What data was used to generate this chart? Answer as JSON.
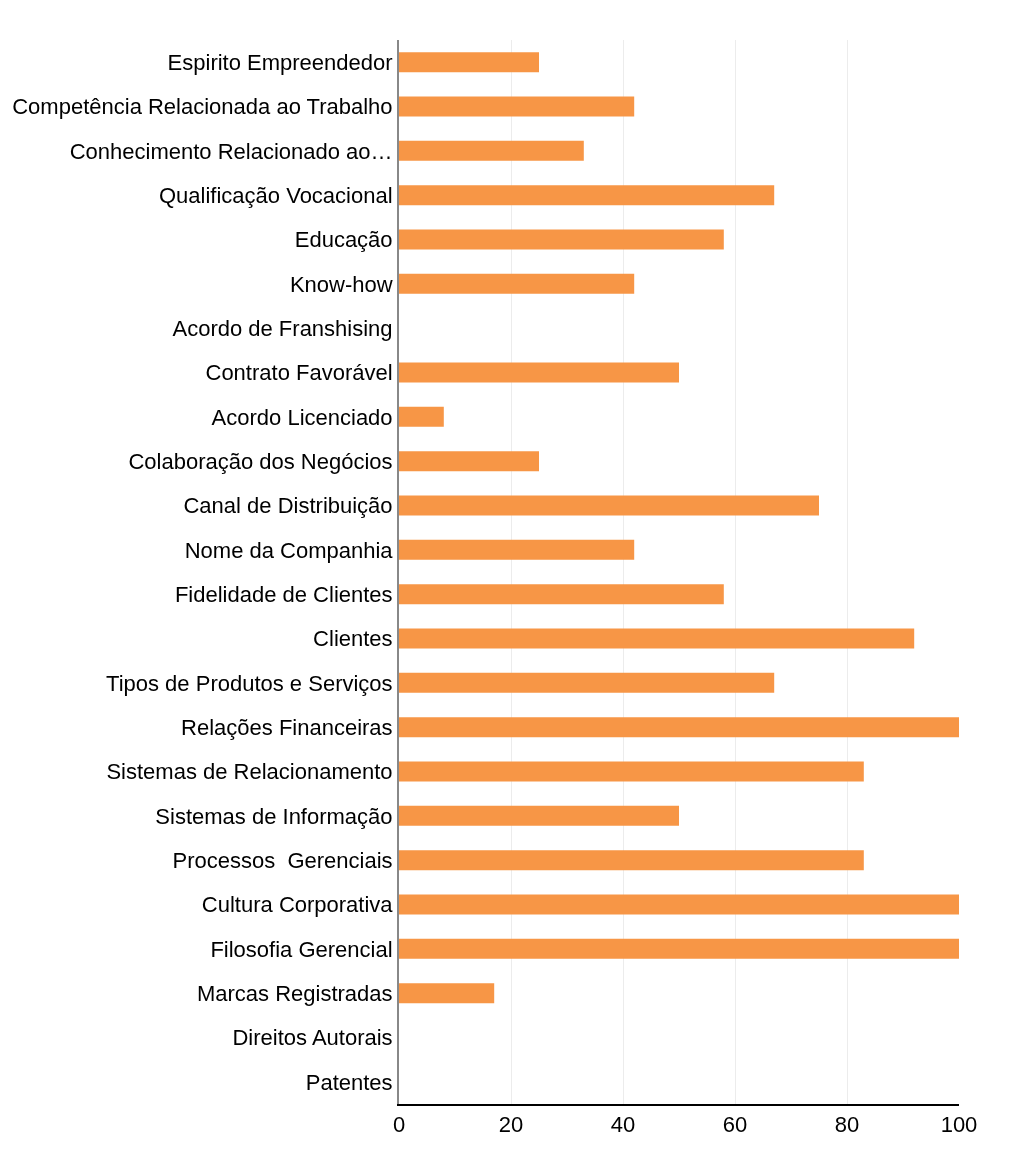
{
  "chart_data": {
    "type": "bar",
    "orientation": "horizontal",
    "categories": [
      "Espirito Empreendedor",
      "Competência Relacionada ao Trabalho",
      "Conhecimento Relacionado ao…",
      "Qualificação Vocacional",
      "Educação",
      "Know-how",
      "Acordo de Franshising",
      "Contrato Favorável",
      "Acordo Licenciado",
      "Colaboração dos Negócios",
      "Canal de Distribuição",
      "Nome da Companhia",
      "Fidelidade de Clientes",
      "Clientes",
      "Tipos de Produtos e Serviços",
      "Relações Financeiras",
      "Sistemas de Relacionamento",
      "Sistemas de Informação",
      "Processos  Gerenciais",
      "Cultura Corporativa",
      "Filosofia Gerencial",
      "Marcas Registradas",
      "Direitos Autorais",
      "Patentes"
    ],
    "values": [
      25,
      42,
      33,
      67,
      58,
      42,
      0,
      50,
      8,
      25,
      75,
      42,
      58,
      92,
      67,
      100,
      83,
      50,
      83,
      100,
      100,
      17,
      0,
      0
    ],
    "color": "#f79646",
    "xlim": [
      0,
      100
    ],
    "xticks": [
      0,
      20,
      40,
      60,
      80,
      100
    ],
    "grid": "x"
  }
}
